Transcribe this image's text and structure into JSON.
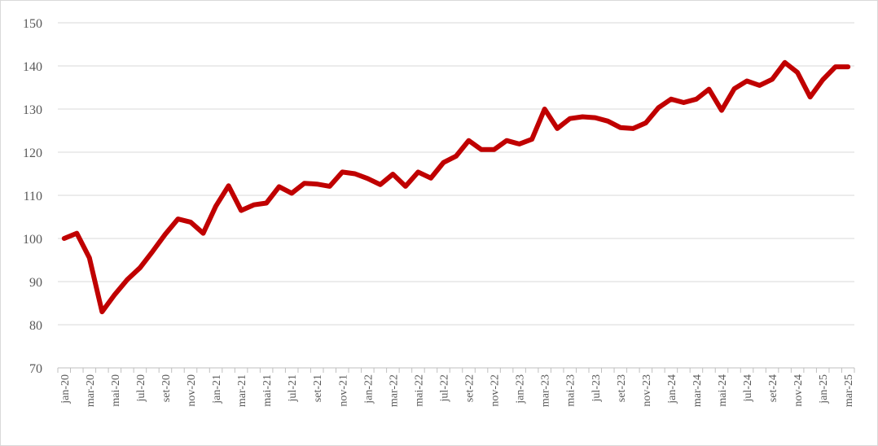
{
  "chart_data": {
    "type": "line",
    "title": "",
    "xlabel": "",
    "ylabel": "",
    "ylim": [
      70,
      150
    ],
    "yticks": [
      70,
      80,
      90,
      100,
      110,
      120,
      130,
      140,
      150
    ],
    "grid": true,
    "legend": "none",
    "line_color": "#c00000",
    "x": [
      "jan-20",
      "fev-20",
      "mar-20",
      "abr-20",
      "mai-20",
      "jun-20",
      "jul-20",
      "ago-20",
      "set-20",
      "out-20",
      "nov-20",
      "dez-20",
      "jan-21",
      "fev-21",
      "mar-21",
      "abr-21",
      "mai-21",
      "jun-21",
      "jul-21",
      "ago-21",
      "set-21",
      "out-21",
      "nov-21",
      "dez-21",
      "jan-22",
      "fev-22",
      "mar-22",
      "abr-22",
      "mai-22",
      "jun-22",
      "jul-22",
      "ago-22",
      "set-22",
      "out-22",
      "nov-22",
      "dez-22",
      "jan-23",
      "fev-23",
      "mar-23",
      "abr-23",
      "mai-23",
      "jun-23",
      "jul-23",
      "ago-23",
      "set-23",
      "out-23",
      "nov-23",
      "dez-23",
      "jan-24",
      "fev-24",
      "mar-24",
      "abr-24",
      "mai-24",
      "jun-24",
      "jul-24",
      "ago-24",
      "set-24",
      "out-24",
      "nov-24",
      "dez-24",
      "jan-25",
      "fev-25",
      "mar-25"
    ],
    "xtick_labels": [
      "jan-20",
      "mar-20",
      "mai-20",
      "jul-20",
      "set-20",
      "nov-20",
      "jan-21",
      "mar-21",
      "mai-21",
      "jul-21",
      "set-21",
      "nov-21",
      "jan-22",
      "mar-22",
      "mai-22",
      "jul-22",
      "set-22",
      "nov-22",
      "jan-23",
      "mar-23",
      "mai-23",
      "jul-23",
      "set-23",
      "nov-23",
      "jan-24",
      "mar-24",
      "mai-24",
      "jul-24",
      "set-24",
      "nov-24",
      "jan-25",
      "mar-25"
    ],
    "series": [
      {
        "values": [
          100,
          101.2,
          95.5,
          83,
          87,
          90.5,
          93.2,
          97,
          101,
          104.5,
          103.8,
          101.2,
          107.5,
          112.2,
          106.5,
          107.8,
          108.2,
          112,
          110.5,
          112.8,
          112.6,
          112.1,
          115.4,
          115,
          113.9,
          112.5,
          114.9,
          112.1,
          115.4,
          114,
          117.6,
          119.1,
          122.7,
          120.6,
          120.6,
          122.7,
          121.9,
          123,
          130,
          125.5,
          127.8,
          128.2,
          128,
          127.2,
          125.7,
          125.5,
          126.8,
          130.3,
          132.3,
          131.5,
          132.3,
          134.6,
          129.7,
          134.7,
          136.5,
          135.5,
          136.9,
          140.8,
          138.5,
          132.8,
          136.8,
          139.8,
          139.8
        ]
      }
    ]
  }
}
